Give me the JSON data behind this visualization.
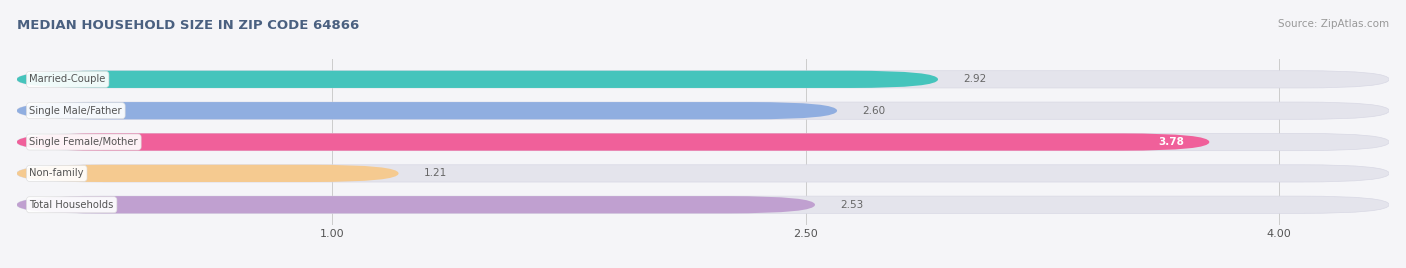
{
  "title": "MEDIAN HOUSEHOLD SIZE IN ZIP CODE 64866",
  "source": "Source: ZipAtlas.com",
  "categories": [
    "Married-Couple",
    "Single Male/Father",
    "Single Female/Mother",
    "Non-family",
    "Total Households"
  ],
  "values": [
    2.92,
    2.6,
    3.78,
    1.21,
    2.53
  ],
  "bar_colors": [
    "#45c4bc",
    "#90aee0",
    "#f0609a",
    "#f5ca90",
    "#c0a0d0"
  ],
  "background_color": "#f5f5f8",
  "bar_background_color": "#e4e4ec",
  "bar_bg_edge_color": "#d8d8e4",
  "xlim_left": 0.0,
  "xlim_right": 4.35,
  "data_min": 0.0,
  "xticks": [
    1.0,
    2.5,
    4.0
  ],
  "value_label_color_inside": "#ffffff",
  "value_label_color_outside": "#666666",
  "title_color": "#4a6080",
  "label_color": "#555555",
  "source_color": "#999999",
  "bar_height": 0.55,
  "bar_spacing": 1.0,
  "figsize": [
    14.06,
    2.68
  ],
  "dpi": 100,
  "inside_threshold": 3.5
}
